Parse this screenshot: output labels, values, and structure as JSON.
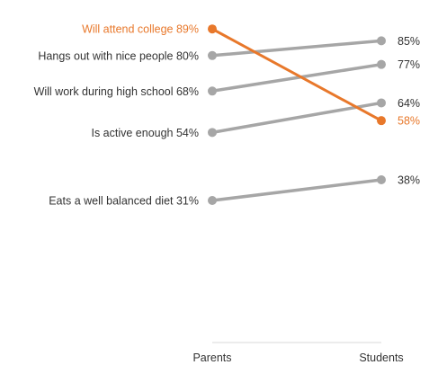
{
  "chart_data": {
    "type": "line",
    "chart_style": "slope",
    "x": [
      "Parents",
      "Students"
    ],
    "ylim": [
      0,
      100
    ],
    "grid": false,
    "legend": "none",
    "colors": {
      "highlight": "#e8782b",
      "default": "#a6a6a6",
      "axis": "#d9d9d9",
      "text": "#333333"
    },
    "series": [
      {
        "label_left": "Will attend college 89%",
        "values": [
          89,
          58
        ],
        "label_right": "58%",
        "highlight": true
      },
      {
        "label_left": "Hangs out with nice people 80%",
        "values": [
          80,
          85
        ],
        "label_right": "85%",
        "highlight": false
      },
      {
        "label_left": "Will work during high school 68%",
        "values": [
          68,
          77
        ],
        "label_right": "77%",
        "highlight": false
      },
      {
        "label_left": "Is active enough 54%",
        "values": [
          54,
          64
        ],
        "label_right": "64%",
        "highlight": false
      },
      {
        "label_left": "Eats a well balanced diet 31%",
        "values": [
          31,
          38
        ],
        "label_right": "38%",
        "highlight": false
      }
    ]
  }
}
